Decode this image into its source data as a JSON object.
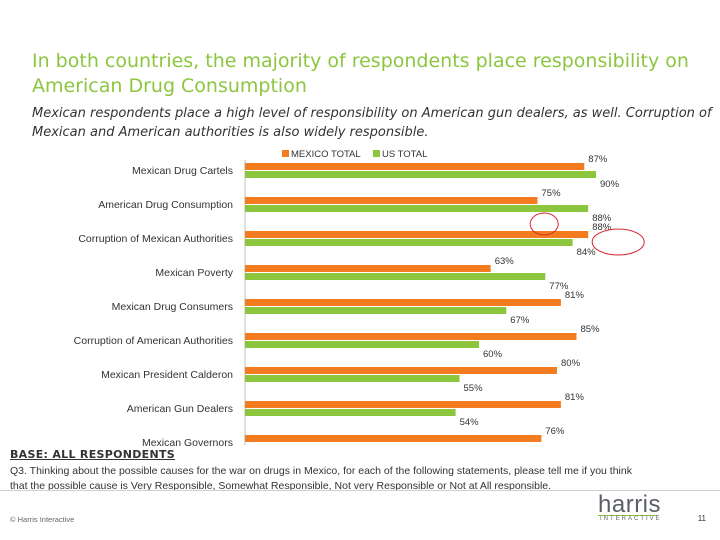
{
  "title": "In both countries, the majority of respondents place responsibility on American Drug Consumption",
  "subtitle": "Mexican respondents place a high level of responsibility on American gun dealers, as well. Corruption of Mexican and American authorities is also widely responsible.",
  "chart_data": {
    "type": "bar",
    "orientation": "horizontal",
    "categories": [
      "Mexican Drug Cartels",
      "American Drug Consumption",
      "Corruption of Mexican Authorities",
      "Mexican Poverty",
      "Mexican Drug Consumers",
      "Corruption of American Authorities",
      "Mexican President Calderon",
      "American Gun Dealers",
      "Mexican Governors"
    ],
    "series": [
      {
        "name": "MEXICO TOTAL",
        "color": "#f47c20",
        "values": [
          87,
          75,
          88,
          63,
          81,
          85,
          80,
          81,
          76
        ]
      },
      {
        "name": "US TOTAL",
        "color": "#8cc63f",
        "values": [
          90,
          88,
          84,
          77,
          67,
          60,
          55,
          54,
          null
        ]
      }
    ],
    "data_labels": [
      [
        "87%",
        "75%",
        "88%",
        "63%",
        "81%",
        "85%",
        "80%",
        "81%",
        "76%"
      ],
      [
        "90%",
        "88%",
        "84%",
        "77%",
        "67%",
        "60%",
        "55%",
        "54%",
        ""
      ]
    ],
    "xlim": [
      0,
      100
    ],
    "legend_position": "top",
    "highlight_color": "#d9262b"
  },
  "footer": {
    "base_label": "BASE: ALL RESPONDENTS",
    "question": "Q3. Thinking about the possible causes for the war on drugs in Mexico, for each of the following statements, please tell me if you think that the possible cause is Very Responsible, Somewhat Responsible, Not very Responsible or Not at All responsible.",
    "copyright": "© Harris Interactive",
    "page_number": "11"
  },
  "logo": {
    "word": "harris",
    "sub": "INTERACTIVE"
  }
}
